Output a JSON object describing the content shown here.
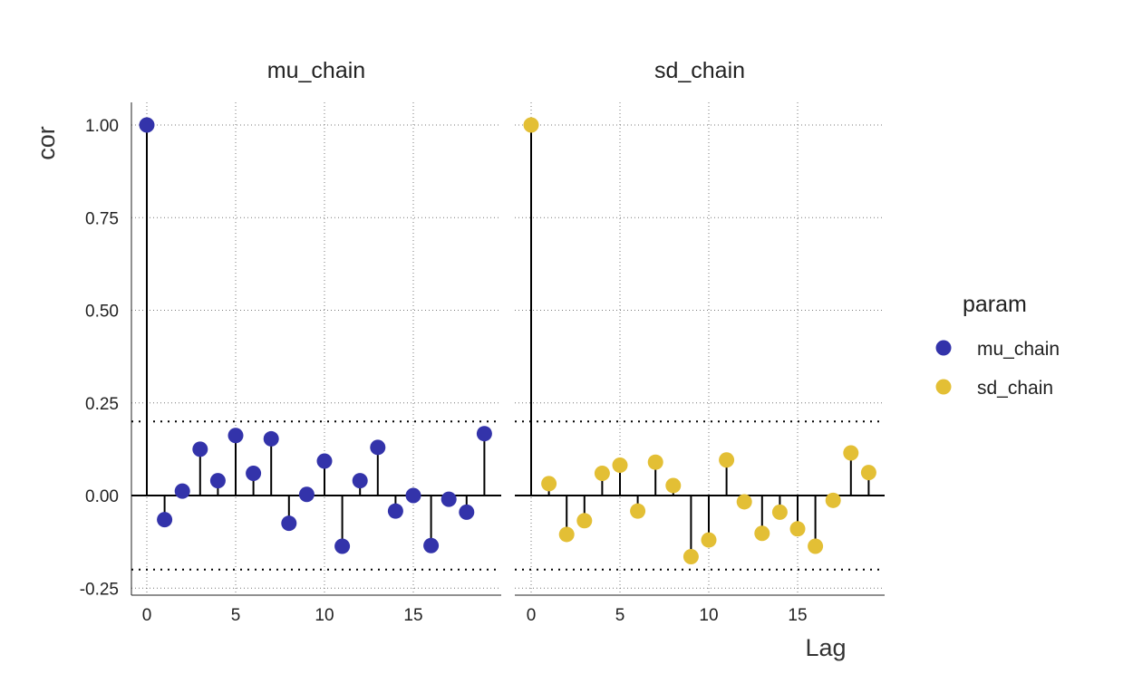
{
  "chart_data": {
    "type": "scatter",
    "subtype": "lollipop-acf",
    "xlabel": "Lag",
    "ylabel": "cor",
    "ylim": [
      -0.25,
      1.0
    ],
    "xlim": [
      0,
      19
    ],
    "x_ticks": [
      0,
      5,
      10,
      15
    ],
    "y_ticks": [
      -0.25,
      0.0,
      0.25,
      0.5,
      0.75,
      1.0
    ],
    "y_tick_labels": [
      "-0.25",
      "0.00",
      "0.25",
      "0.50",
      "0.75",
      "1.00"
    ],
    "confidence_bounds": [
      0.2,
      -0.2
    ],
    "grid": true,
    "legend": {
      "title": "param",
      "position": "right",
      "entries": [
        {
          "label": "mu_chain",
          "color": "#3333aa"
        },
        {
          "label": "sd_chain",
          "color": "#e3bf35"
        }
      ]
    },
    "lags": [
      0,
      1,
      2,
      3,
      4,
      5,
      6,
      7,
      8,
      9,
      10,
      11,
      12,
      13,
      14,
      15,
      16,
      17,
      18,
      19
    ],
    "series": [
      {
        "name": "mu_chain",
        "panel_title": "mu_chain",
        "color": "#3333aa",
        "values": [
          1.0,
          -0.065,
          0.012,
          0.125,
          0.04,
          0.162,
          0.06,
          0.153,
          -0.075,
          0.003,
          0.093,
          -0.137,
          0.04,
          0.13,
          -0.042,
          0.0,
          -0.135,
          -0.01,
          -0.045,
          0.167
        ]
      },
      {
        "name": "sd_chain",
        "panel_title": "sd_chain",
        "color": "#e3bf35",
        "values": [
          1.0,
          0.032,
          -0.105,
          -0.068,
          0.06,
          0.082,
          -0.042,
          0.09,
          0.027,
          -0.165,
          -0.12,
          0.096,
          -0.017,
          -0.102,
          -0.045,
          -0.09,
          -0.137,
          -0.013,
          0.115,
          0.062
        ]
      }
    ]
  }
}
